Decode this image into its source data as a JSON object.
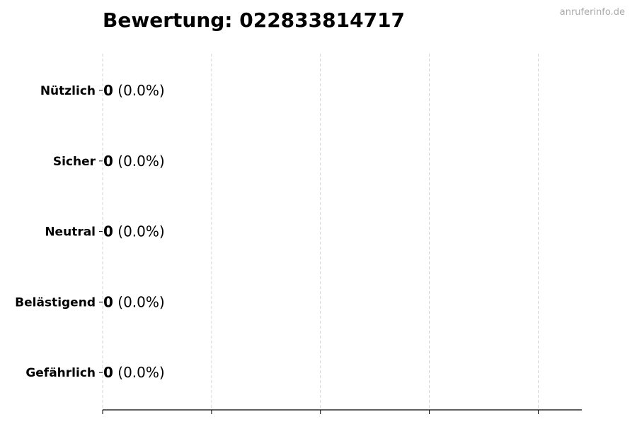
{
  "watermark": "anruferinfo.de",
  "chart_data": {
    "type": "bar",
    "orientation": "horizontal",
    "title": "Bewertung: 022833814717",
    "categories": [
      "Nützlich",
      "Sicher",
      "Neutral",
      "Belästigend",
      "Gefährlich"
    ],
    "values": [
      0,
      0,
      0,
      0,
      0
    ],
    "data_labels": [
      {
        "count": "0",
        "percent": "(0.0%)"
      },
      {
        "count": "0",
        "percent": "(0.0%)"
      },
      {
        "count": "0",
        "percent": "(0.0%)"
      },
      {
        "count": "0",
        "percent": "(0.0%)"
      },
      {
        "count": "0",
        "percent": "(0.0%)"
      }
    ],
    "xlim": [
      0,
      4.4
    ],
    "xticks": [
      0,
      1,
      2,
      3,
      4
    ],
    "xtick_labels_shown": false,
    "grid": "x, dashed",
    "xlabel": "",
    "ylabel": "",
    "colors": {
      "bar_edge": "#000000",
      "grid": "#cccccc"
    }
  }
}
